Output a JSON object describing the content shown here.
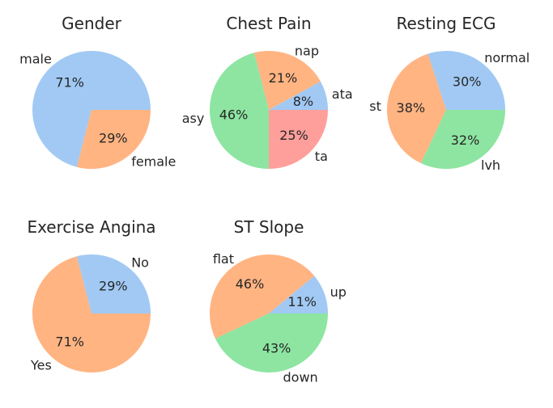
{
  "colors": {
    "blue": "#a1c9f4",
    "orange": "#ffb482",
    "green": "#8de5a1",
    "red": "#ff9f9b"
  },
  "chart_data": [
    {
      "type": "pie",
      "title": "Gender",
      "categories": [
        "male",
        "female"
      ],
      "values": [
        71,
        29
      ],
      "labels_pct": [
        "71%",
        "29%"
      ],
      "colors": [
        "#a1c9f4",
        "#ffb482"
      ],
      "start_angle_deg": 0
    },
    {
      "type": "pie",
      "title": "Chest Pain",
      "categories": [
        "ata",
        "nap",
        "asy",
        "ta"
      ],
      "values": [
        8,
        21,
        46,
        25
      ],
      "labels_pct": [
        "8%",
        "21%",
        "46%",
        "25%"
      ],
      "colors": [
        "#a1c9f4",
        "#ffb482",
        "#8de5a1",
        "#ff9f9b"
      ],
      "start_angle_deg": 0
    },
    {
      "type": "pie",
      "title": "Resting ECG",
      "categories": [
        "normal",
        "st",
        "lvh"
      ],
      "values": [
        30,
        38,
        32
      ],
      "labels_pct": [
        "30%",
        "38%",
        "32%"
      ],
      "colors": [
        "#a1c9f4",
        "#ffb482",
        "#8de5a1"
      ],
      "start_angle_deg": 0
    },
    {
      "type": "pie",
      "title": "Exercise Angina",
      "categories": [
        "No",
        "Yes"
      ],
      "values": [
        29,
        71
      ],
      "labels_pct": [
        "29%",
        "71%"
      ],
      "colors": [
        "#a1c9f4",
        "#ffb482"
      ],
      "start_angle_deg": 0
    },
    {
      "type": "pie",
      "title": "ST Slope",
      "categories": [
        "up",
        "flat",
        "down"
      ],
      "values": [
        11,
        46,
        43
      ],
      "labels_pct": [
        "11%",
        "46%",
        "43%"
      ],
      "colors": [
        "#a1c9f4",
        "#ffb482",
        "#8de5a1"
      ],
      "start_angle_deg": 0
    }
  ]
}
